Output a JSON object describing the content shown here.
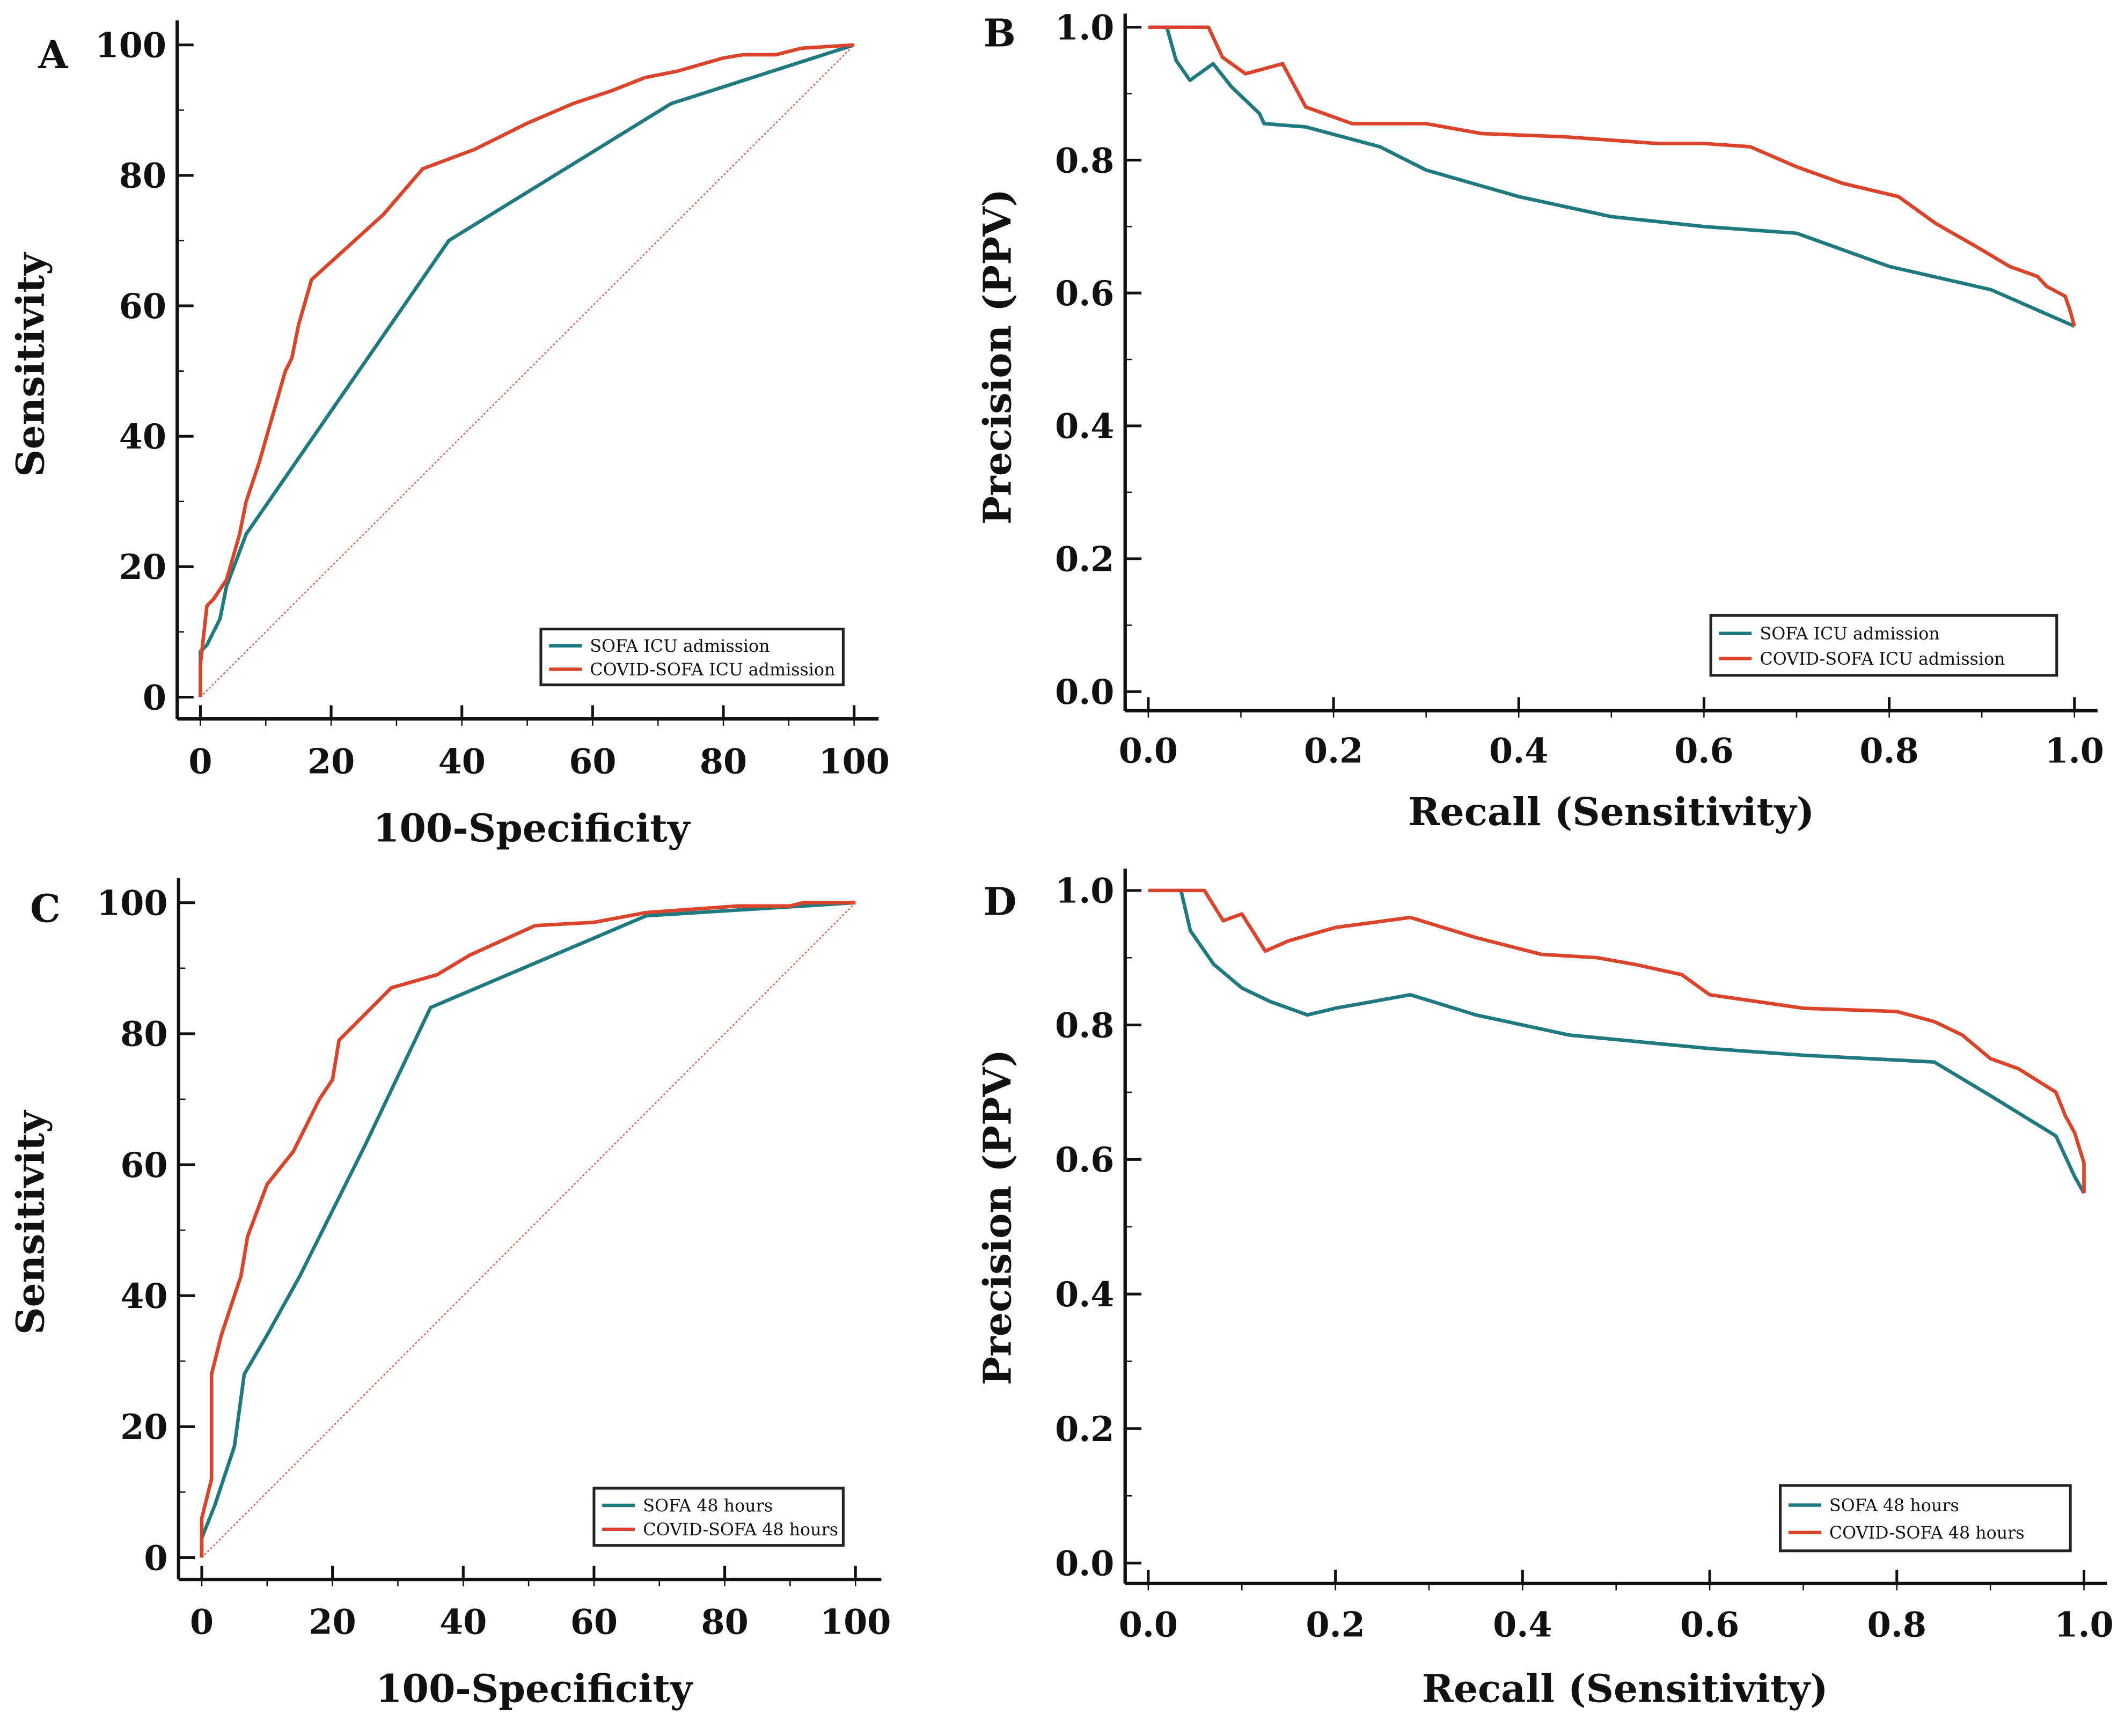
{
  "colors": {
    "sofa": "#1f7a80",
    "covid": "#d9442a",
    "diagonal": "#d9442a"
  },
  "chart_data": [
    {
      "panel": "A",
      "type": "line",
      "xlabel": "100-Specificity",
      "ylabel": "Sensitivity",
      "xlim": [
        0,
        100
      ],
      "ylim": [
        0,
        100
      ],
      "xticks": [
        "0",
        "20",
        "40",
        "60",
        "80",
        "100"
      ],
      "xtick_values": [
        0,
        20,
        40,
        60,
        80,
        100
      ],
      "yticks": [
        "0",
        "20",
        "40",
        "60",
        "80",
        "100"
      ],
      "ytick_values": [
        0,
        20,
        40,
        60,
        80,
        100
      ],
      "minor_step": 10,
      "diagonal": true,
      "legend_position": "bottom-right",
      "series": [
        {
          "name": "SOFA ICU admission",
          "color_key": "sofa",
          "x": [
            0,
            0,
            1,
            3,
            4,
            7,
            38,
            72,
            100
          ],
          "y": [
            0,
            7,
            8,
            12,
            17,
            25,
            70,
            91,
            100
          ]
        },
        {
          "name": "COVID-SOFA ICU admission",
          "color_key": "covid",
          "x": [
            0,
            0,
            1,
            2,
            4,
            6,
            7,
            9,
            11,
            13,
            14,
            15,
            17,
            28,
            34,
            42,
            50,
            57,
            63,
            68,
            73,
            80,
            83,
            88,
            92,
            100
          ],
          "y": [
            0,
            5,
            14,
            15,
            18,
            25,
            30,
            36,
            43,
            50,
            52,
            57,
            64,
            74,
            81,
            84,
            88,
            91,
            93,
            95,
            96,
            98,
            98.5,
            98.5,
            99.5,
            100
          ]
        }
      ]
    },
    {
      "panel": "B",
      "type": "line",
      "xlabel": "Recall (Sensitivity)",
      "ylabel": "Precision (PPV)",
      "xlim": [
        0,
        1
      ],
      "ylim": [
        0,
        1
      ],
      "xticks": [
        "0.0",
        "0.2",
        "0.4",
        "0.6",
        "0.8",
        "1.0"
      ],
      "xtick_values": [
        0,
        0.2,
        0.4,
        0.6,
        0.8,
        1
      ],
      "yticks": [
        "0.0",
        "0.2",
        "0.4",
        "0.6",
        "0.8",
        "1.0"
      ],
      "ytick_values": [
        0,
        0.2,
        0.4,
        0.6,
        0.8,
        1
      ],
      "minor_step": 0.1,
      "diagonal": false,
      "legend_position": "bottom-right",
      "series": [
        {
          "name": "SOFA ICU admission",
          "color_key": "sofa",
          "x": [
            0.02,
            0.03,
            0.045,
            0.06,
            0.07,
            0.09,
            0.12,
            0.125,
            0.17,
            0.25,
            0.3,
            0.4,
            0.5,
            0.6,
            0.7,
            0.8,
            0.91,
            1.0
          ],
          "y": [
            1.0,
            0.95,
            0.92,
            0.935,
            0.945,
            0.91,
            0.87,
            0.855,
            0.85,
            0.82,
            0.785,
            0.745,
            0.715,
            0.7,
            0.69,
            0.64,
            0.605,
            0.55
          ]
        },
        {
          "name": "COVID-SOFA ICU admission",
          "color_key": "covid",
          "x": [
            0,
            0.065,
            0.08,
            0.105,
            0.145,
            0.17,
            0.18,
            0.22,
            0.3,
            0.36,
            0.45,
            0.55,
            0.6,
            0.65,
            0.7,
            0.75,
            0.81,
            0.85,
            0.9,
            0.93,
            0.96,
            0.97,
            0.99,
            0.995,
            1.0
          ],
          "y": [
            1.0,
            1.0,
            0.955,
            0.93,
            0.945,
            0.88,
            0.875,
            0.855,
            0.855,
            0.84,
            0.835,
            0.825,
            0.825,
            0.82,
            0.79,
            0.765,
            0.745,
            0.705,
            0.665,
            0.64,
            0.625,
            0.61,
            0.595,
            0.575,
            0.55
          ]
        }
      ]
    },
    {
      "panel": "C",
      "type": "line",
      "xlabel": "100-Specificity",
      "ylabel": "Sensitivity",
      "xlim": [
        0,
        100
      ],
      "ylim": [
        0,
        100
      ],
      "xticks": [
        "0",
        "20",
        "40",
        "60",
        "80",
        "100"
      ],
      "xtick_values": [
        0,
        20,
        40,
        60,
        80,
        100
      ],
      "yticks": [
        "0",
        "20",
        "40",
        "60",
        "80",
        "100"
      ],
      "ytick_values": [
        0,
        20,
        40,
        60,
        80,
        100
      ],
      "minor_step": 10,
      "diagonal": true,
      "legend_position": "bottom-right",
      "series": [
        {
          "name": "SOFA 48 hours",
          "color_key": "sofa",
          "x": [
            0,
            0,
            2,
            5,
            6.5,
            10,
            15,
            20,
            25,
            35,
            68,
            100
          ],
          "y": [
            0,
            3,
            8,
            17,
            28,
            34,
            43,
            53,
            63,
            84,
            98,
            100
          ]
        },
        {
          "name": "COVID-SOFA 48 hours",
          "color_key": "covid",
          "x": [
            0,
            0,
            1,
            1.5,
            1.5,
            3,
            5,
            6,
            7,
            10,
            14,
            18,
            20,
            21,
            25,
            29,
            36,
            41,
            51,
            60,
            68,
            82,
            90,
            92,
            100
          ],
          "y": [
            0,
            6,
            10,
            12,
            28,
            34,
            40,
            43,
            49,
            57,
            62,
            70,
            73,
            79,
            83,
            87,
            89,
            92,
            96.5,
            97,
            98.5,
            99.5,
            99.5,
            100,
            100
          ]
        }
      ]
    },
    {
      "panel": "D",
      "type": "line",
      "xlabel": "Recall (Sensitivity)",
      "ylabel": "Precision (PPV)",
      "xlim": [
        0,
        1
      ],
      "ylim": [
        0,
        1
      ],
      "xticks": [
        "0.0",
        "0.2",
        "0.4",
        "0.6",
        "0.8",
        "1.0"
      ],
      "xtick_values": [
        0,
        0.2,
        0.4,
        0.6,
        0.8,
        1
      ],
      "yticks": [
        "0.0",
        "0.2",
        "0.4",
        "0.6",
        "0.8",
        "1.0"
      ],
      "ytick_values": [
        0,
        0.2,
        0.4,
        0.6,
        0.8,
        1
      ],
      "minor_step": 0.1,
      "diagonal": false,
      "legend_position": "bottom-right",
      "series": [
        {
          "name": "SOFA 48 hours",
          "color_key": "sofa",
          "x": [
            0.035,
            0.045,
            0.07,
            0.1,
            0.13,
            0.17,
            0.2,
            0.28,
            0.35,
            0.45,
            0.6,
            0.7,
            0.84,
            0.9,
            0.97,
            0.99,
            1.0
          ],
          "y": [
            1.0,
            0.94,
            0.89,
            0.855,
            0.835,
            0.815,
            0.825,
            0.845,
            0.815,
            0.785,
            0.765,
            0.755,
            0.745,
            0.695,
            0.635,
            0.575,
            0.55
          ]
        },
        {
          "name": "COVID-SOFA 48 hours",
          "color_key": "covid",
          "x": [
            0,
            0.06,
            0.08,
            0.1,
            0.125,
            0.15,
            0.2,
            0.28,
            0.35,
            0.42,
            0.48,
            0.52,
            0.57,
            0.6,
            0.7,
            0.8,
            0.84,
            0.87,
            0.9,
            0.93,
            0.97,
            0.98,
            0.99,
            1.0,
            1.0
          ],
          "y": [
            1.0,
            1.0,
            0.955,
            0.965,
            0.91,
            0.925,
            0.945,
            0.96,
            0.93,
            0.905,
            0.9,
            0.89,
            0.875,
            0.845,
            0.825,
            0.82,
            0.805,
            0.785,
            0.75,
            0.735,
            0.7,
            0.665,
            0.64,
            0.595,
            0.55
          ]
        }
      ]
    }
  ]
}
